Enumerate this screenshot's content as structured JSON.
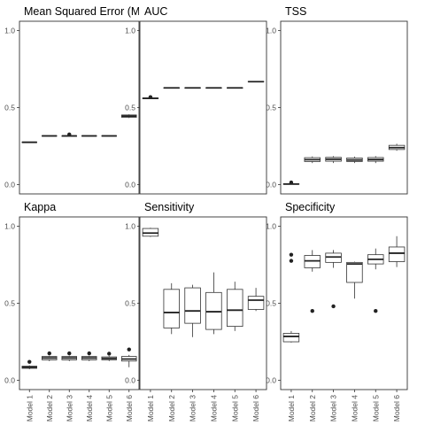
{
  "chart_data": {
    "type": "boxplot",
    "categories": [
      "Model 1",
      "Model 2",
      "Model 3",
      "Model 4",
      "Model 5",
      "Model 6"
    ],
    "ylim": [
      0,
      1
    ],
    "yticks": [
      "0.0",
      "0.5",
      "1.0"
    ],
    "panels": [
      {
        "title": "Mean Squared Error (MS",
        "boxes": [
          {
            "min": 0.272,
            "q1": 0.273,
            "median": 0.275,
            "q3": 0.277,
            "max": 0.278,
            "outliers": []
          },
          {
            "min": 0.313,
            "q1": 0.314,
            "median": 0.316,
            "q3": 0.318,
            "max": 0.319,
            "outliers": []
          },
          {
            "min": 0.312,
            "q1": 0.313,
            "median": 0.316,
            "q3": 0.318,
            "max": 0.319,
            "outliers": [
              0.326
            ]
          },
          {
            "min": 0.313,
            "q1": 0.314,
            "median": 0.316,
            "q3": 0.318,
            "max": 0.319,
            "outliers": []
          },
          {
            "min": 0.313,
            "q1": 0.314,
            "median": 0.316,
            "q3": 0.318,
            "max": 0.319,
            "outliers": []
          },
          {
            "min": 0.432,
            "q1": 0.437,
            "median": 0.445,
            "q3": 0.452,
            "max": 0.456,
            "outliers": []
          }
        ]
      },
      {
        "title": "AUC",
        "boxes": [
          {
            "min": 0.557,
            "q1": 0.558,
            "median": 0.56,
            "q3": 0.562,
            "max": 0.563,
            "outliers": [
              0.568
            ]
          },
          {
            "min": 0.626,
            "q1": 0.627,
            "median": 0.628,
            "q3": 0.629,
            "max": 0.63,
            "outliers": []
          },
          {
            "min": 0.626,
            "q1": 0.627,
            "median": 0.628,
            "q3": 0.629,
            "max": 0.63,
            "outliers": []
          },
          {
            "min": 0.626,
            "q1": 0.627,
            "median": 0.628,
            "q3": 0.629,
            "max": 0.63,
            "outliers": []
          },
          {
            "min": 0.626,
            "q1": 0.627,
            "median": 0.628,
            "q3": 0.629,
            "max": 0.63,
            "outliers": []
          },
          {
            "min": 0.665,
            "q1": 0.667,
            "median": 0.668,
            "q3": 0.67,
            "max": 0.671,
            "outliers": []
          }
        ]
      },
      {
        "title": "TSS",
        "boxes": [
          {
            "min": 0.0,
            "q1": 0.002,
            "median": 0.004,
            "q3": 0.006,
            "max": 0.008,
            "outliers": [
              0.014
            ]
          },
          {
            "min": 0.14,
            "q1": 0.15,
            "median": 0.162,
            "q3": 0.175,
            "max": 0.183,
            "outliers": []
          },
          {
            "min": 0.14,
            "q1": 0.152,
            "median": 0.165,
            "q3": 0.177,
            "max": 0.185,
            "outliers": []
          },
          {
            "min": 0.14,
            "q1": 0.15,
            "median": 0.16,
            "q3": 0.173,
            "max": 0.182,
            "outliers": []
          },
          {
            "min": 0.14,
            "q1": 0.152,
            "median": 0.163,
            "q3": 0.176,
            "max": 0.185,
            "outliers": []
          },
          {
            "min": 0.22,
            "q1": 0.228,
            "median": 0.24,
            "q3": 0.255,
            "max": 0.265,
            "outliers": []
          }
        ]
      },
      {
        "title": "Kappa",
        "boxes": [
          {
            "min": 0.072,
            "q1": 0.078,
            "median": 0.085,
            "q3": 0.092,
            "max": 0.097,
            "outliers": [
              0.12
            ]
          },
          {
            "min": 0.125,
            "q1": 0.133,
            "median": 0.145,
            "q3": 0.155,
            "max": 0.16,
            "outliers": [
              0.175
            ]
          },
          {
            "min": 0.125,
            "q1": 0.133,
            "median": 0.145,
            "q3": 0.155,
            "max": 0.16,
            "outliers": [
              0.175
            ]
          },
          {
            "min": 0.125,
            "q1": 0.133,
            "median": 0.145,
            "q3": 0.155,
            "max": 0.16,
            "outliers": [
              0.175
            ]
          },
          {
            "min": 0.125,
            "q1": 0.133,
            "median": 0.142,
            "q3": 0.152,
            "max": 0.158,
            "outliers": [
              0.173
            ]
          },
          {
            "min": 0.085,
            "q1": 0.125,
            "median": 0.138,
            "q3": 0.155,
            "max": 0.165,
            "outliers": [
              0.2
            ]
          }
        ]
      },
      {
        "title": "Sensitivity",
        "boxes": [
          {
            "min": 0.93,
            "q1": 0.935,
            "median": 0.955,
            "q3": 0.985,
            "max": 0.99,
            "outliers": []
          },
          {
            "min": 0.3,
            "q1": 0.34,
            "median": 0.44,
            "q3": 0.59,
            "max": 0.63,
            "outliers": []
          },
          {
            "min": 0.28,
            "q1": 0.37,
            "median": 0.45,
            "q3": 0.6,
            "max": 0.62,
            "outliers": []
          },
          {
            "min": 0.3,
            "q1": 0.33,
            "median": 0.445,
            "q3": 0.57,
            "max": 0.7,
            "outliers": []
          },
          {
            "min": 0.32,
            "q1": 0.35,
            "median": 0.455,
            "q3": 0.59,
            "max": 0.64,
            "outliers": []
          },
          {
            "min": 0.45,
            "q1": 0.46,
            "median": 0.52,
            "q3": 0.545,
            "max": 0.6,
            "outliers": []
          }
        ]
      },
      {
        "title": "Specificity",
        "boxes": [
          {
            "min": 0.245,
            "q1": 0.25,
            "median": 0.285,
            "q3": 0.305,
            "max": 0.32,
            "outliers": [
              0.775,
              0.815
            ]
          },
          {
            "min": 0.705,
            "q1": 0.73,
            "median": 0.775,
            "q3": 0.81,
            "max": 0.845,
            "outliers": [
              0.45
            ]
          },
          {
            "min": 0.73,
            "q1": 0.765,
            "median": 0.8,
            "q3": 0.825,
            "max": 0.845,
            "outliers": [
              0.48
            ]
          },
          {
            "min": 0.53,
            "q1": 0.635,
            "median": 0.755,
            "q3": 0.765,
            "max": 0.77,
            "outliers": []
          },
          {
            "min": 0.72,
            "q1": 0.755,
            "median": 0.785,
            "q3": 0.815,
            "max": 0.855,
            "outliers": [
              0.45
            ]
          },
          {
            "min": 0.735,
            "q1": 0.77,
            "median": 0.825,
            "q3": 0.865,
            "max": 0.935,
            "outliers": []
          }
        ]
      }
    ]
  }
}
